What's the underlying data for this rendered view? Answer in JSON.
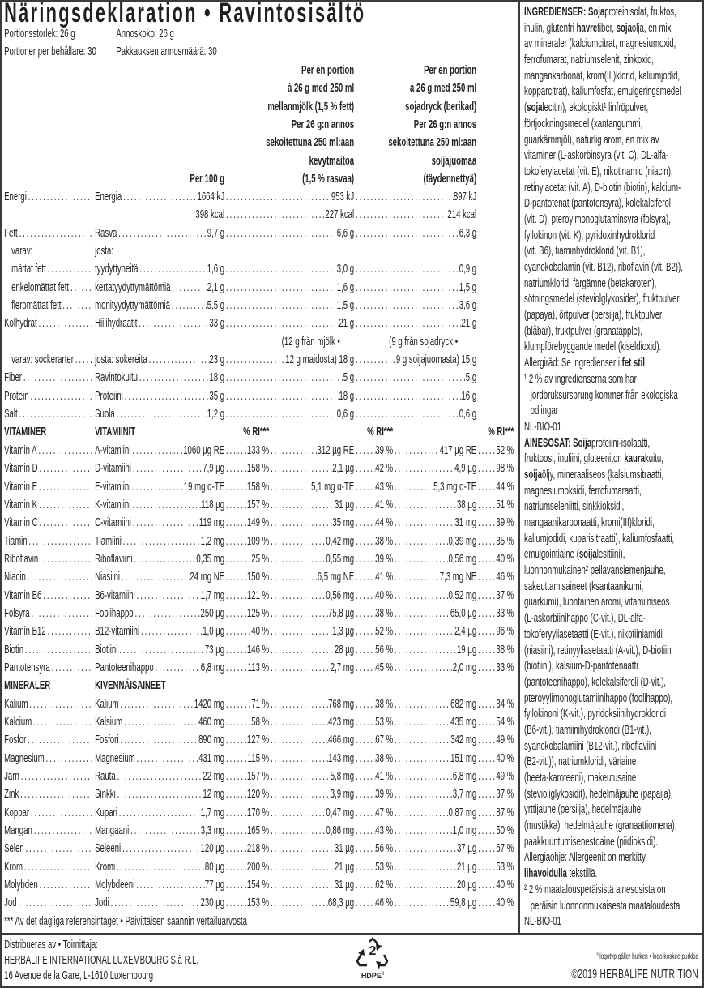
{
  "title": "Näringsdeklaration • Ravintosisältö",
  "serving": {
    "size_sv": "Portionsstorlek: 26 g",
    "size_fi": "Annoskoko: 26 g",
    "count_sv": "Portioner per behållare: 30",
    "count_fi": "Pakkauksen annosmäärä: 30"
  },
  "columns": {
    "per100": "Per 100 g",
    "milk": [
      "Per en portion",
      "à 26 g med 250 ml",
      "mellanmjölk (1,5 % fett)",
      "Per 26 g:n annos",
      "sekoitettuna 250 ml:aan",
      "kevytmaitoa",
      "(1,5 % rasvaa)"
    ],
    "soy": [
      "Per en portion",
      "à 26 g med 250 ml",
      "sojadryck (berikad)",
      "Per 26 g:n annos",
      "sekoitettuna 250 ml:aan",
      "soijajuomaa",
      "(täydennettyä)"
    ]
  },
  "nutrients": [
    {
      "type": "main",
      "sv": "Energi",
      "fi": "Energia",
      "v1": "1664 kJ",
      "v2": "953 kJ",
      "v3": "897 kJ"
    },
    {
      "type": "cont",
      "v1": "398 kcal",
      "v2": "227 kcal",
      "v3": "214 kcal"
    },
    {
      "type": "main",
      "sv": "Fett",
      "fi": "Rasva",
      "v1": "9,7 g",
      "v2": "6,6 g",
      "v3": "6,3 g"
    },
    {
      "type": "label",
      "sv": "varav:",
      "fi": "josta:"
    },
    {
      "type": "main",
      "indent": true,
      "sv": "mättat fett",
      "fi": "tyydyttyneitä",
      "v1": "1,6 g",
      "v2": "3,0 g",
      "v3": "0,9 g"
    },
    {
      "type": "main",
      "indent": true,
      "sv": "enkelomättat fett",
      "fi": "kertatyydyttymättömiä",
      "v1": "2,1 g",
      "v2": "1,6 g",
      "v3": "1,5 g"
    },
    {
      "type": "main",
      "indent": true,
      "sv": "fleromättat fett",
      "fi": "monityydyttymättömiä",
      "v1": "5,5 g",
      "v2": "1,5 g",
      "v3": "3,6 g"
    },
    {
      "type": "main",
      "sv": "Kolhydrat",
      "fi": "Hiilihydraatit",
      "v1": "33 g",
      "v2": "21 g",
      "v3": "21 g"
    },
    {
      "type": "note",
      "v2": "(12 g från mjölk •",
      "v3": "(9 g från sojadryck •"
    },
    {
      "type": "main",
      "indent": true,
      "sv": "varav: sockerarter",
      "fi": "josta: sokereita",
      "v1": "23 g",
      "v2": "12 g maidosta) 18 g",
      "v3": "9 g soijajuomasta) 15 g"
    },
    {
      "type": "main",
      "sv": "Fiber",
      "fi": "Ravintokuitu",
      "v1": "18 g",
      "v2": "5 g",
      "v3": "5 g"
    },
    {
      "type": "main",
      "sv": "Protein",
      "fi": "Proteiini",
      "v1": "35 g",
      "v2": "18 g",
      "v3": "16 g"
    },
    {
      "type": "main",
      "sv": "Salt",
      "fi": "Suola",
      "v1": "1,2 g",
      "v2": "0,6 g",
      "v3": "0,6 g"
    }
  ],
  "ri_label": "% RI***",
  "vitamins": {
    "header_sv": "VITAMINER",
    "header_fi": "VITAMIINIT",
    "rows": [
      {
        "sv": "Vitamin A",
        "fi": "A-vitamiini",
        "v1": "1060 µg RE",
        "p1": "133 %",
        "v2": "312 µg RE",
        "p2": "39 %",
        "v3": "417 µg RE",
        "p3": "52 %"
      },
      {
        "sv": "Vitamin D",
        "fi": "D-vitamiini",
        "v1": "7,9 µg",
        "p1": "158 %",
        "v2": "2,1 µg",
        "p2": "42 %",
        "v3": "4,9 µg",
        "p3": "98 %"
      },
      {
        "sv": "Vitamin E",
        "fi": "E-vitamiini",
        "v1": "19 mg α-TE",
        "p1": "158 %",
        "v2": "5,1 mg α-TE",
        "p2": "43 %",
        "v3": "5,3 mg α-TE",
        "p3": "44 %"
      },
      {
        "sv": "Vitamin K",
        "fi": "K-vitamiini",
        "v1": "118 µg",
        "p1": "157 %",
        "v2": "31 µg",
        "p2": "41 %",
        "v3": "38 µg",
        "p3": "51 %"
      },
      {
        "sv": "Vitamin C",
        "fi": "C-vitamiini",
        "v1": "119 mg",
        "p1": "149 %",
        "v2": "35 mg",
        "p2": "44 %",
        "v3": "31 mg",
        "p3": "39 %"
      },
      {
        "sv": "Tiamin",
        "fi": "Tiamiini",
        "v1": "1,2 mg",
        "p1": "109 %",
        "v2": "0,42 mg",
        "p2": "38 %",
        "v3": "0,39 mg",
        "p3": "35 %"
      },
      {
        "sv": "Riboflavin",
        "fi": "Riboflaviini",
        "v1": "0,35 mg",
        "p1": "25 %",
        "v2": "0,55 mg",
        "p2": "39 %",
        "v3": "0,56 mg",
        "p3": "40 %"
      },
      {
        "sv": "Niacin",
        "fi": "Niasiini",
        "v1": "24 mg NE",
        "p1": "150 %",
        "v2": "6,5 mg NE",
        "p2": "41 %",
        "v3": "7,3 mg NE",
        "p3": "46 %"
      },
      {
        "sv": "Vitamin B6",
        "fi": "B6-vitamiini",
        "v1": "1,7 mg",
        "p1": "121 %",
        "v2": "0,56 mg",
        "p2": "40 %",
        "v3": "0,52 mg",
        "p3": "37 %"
      },
      {
        "sv": "Folsyra",
        "fi": "Foolihappo",
        "v1": "250 µg",
        "p1": "125 %",
        "v2": "75,8 µg",
        "p2": "38 %",
        "v3": "65,0 µg",
        "p3": "33 %"
      },
      {
        "sv": "Vitamin B12",
        "fi": "B12-vitamiini",
        "v1": "1,0 µg",
        "p1": "40 %",
        "v2": "1,3 µg",
        "p2": "52 %",
        "v3": "2,4 µg",
        "p3": "96 %"
      },
      {
        "sv": "Biotin",
        "fi": "Biotiini",
        "v1": "73 µg",
        "p1": "146 %",
        "v2": "28 µg",
        "p2": "56 %",
        "v3": "19 µg",
        "p3": "38 %"
      },
      {
        "sv": "Pantotensyra",
        "fi": "Pantoteenihappo",
        "v1": "6,8 mg",
        "p1": "113 %",
        "v2": "2,7 mg",
        "p2": "45 %",
        "v3": "2,0 mg",
        "p3": "33 %"
      }
    ]
  },
  "minerals": {
    "header_sv": "MINERALER",
    "header_fi": "KIVENNÄISAINEET",
    "rows": [
      {
        "sv": "Kalium",
        "fi": "Kalium",
        "v1": "1420 mg",
        "p1": "71 %",
        "v2": "768 mg",
        "p2": "38 %",
        "v3": "682 mg",
        "p3": "34 %"
      },
      {
        "sv": "Kalcium",
        "fi": "Kalsium",
        "v1": "460 mg",
        "p1": "58 %",
        "v2": "423 mg",
        "p2": "53 %",
        "v3": "435 mg",
        "p3": "54 %"
      },
      {
        "sv": "Fosfor",
        "fi": "Fosfori",
        "v1": "890 mg",
        "p1": "127 %",
        "v2": "466 mg",
        "p2": "67 %",
        "v3": "342 mg",
        "p3": "49 %"
      },
      {
        "sv": "Magnesium",
        "fi": "Magnesium",
        "v1": "431 mg",
        "p1": "115 %",
        "v2": "143 mg",
        "p2": "38 %",
        "v3": "151 mg",
        "p3": "40 %"
      },
      {
        "sv": "Järn",
        "fi": "Rauta",
        "v1": "22 mg",
        "p1": "157 %",
        "v2": "5,8 mg",
        "p2": "41 %",
        "v3": "6,8 mg",
        "p3": "49 %"
      },
      {
        "sv": "Zink",
        "fi": "Sinkki",
        "v1": "12 mg",
        "p1": "120 %",
        "v2": "3,9 mg",
        "p2": "39 %",
        "v3": "3,7 mg",
        "p3": "37 %"
      },
      {
        "sv": "Koppar",
        "fi": "Kupari",
        "v1": "1,7 mg",
        "p1": "170 %",
        "v2": "0,47 mg",
        "p2": "47 %",
        "v3": "0,87 mg",
        "p3": "87 %"
      },
      {
        "sv": "Mangan",
        "fi": "Mangaani",
        "v1": "3,3 mg",
        "p1": "165 %",
        "v2": "0,86 mg",
        "p2": "43 %",
        "v3": "1,0 mg",
        "p3": "50 %"
      },
      {
        "sv": "Selen",
        "fi": "Seleeni",
        "v1": "120 µg",
        "p1": "218 %",
        "v2": "31 µg",
        "p2": "56 %",
        "v3": "37 µg",
        "p3": "67 %"
      },
      {
        "sv": "Krom",
        "fi": "Kromi",
        "v1": "80 µg",
        "p1": "200 %",
        "v2": "21 µg",
        "p2": "53 %",
        "v3": "21 µg",
        "p3": "53 %"
      },
      {
        "sv": "Molybden",
        "fi": "Molybdeeni",
        "v1": "77 µg",
        "p1": "154 %",
        "v2": "31 µg",
        "p2": "62 %",
        "v3": "20 µg",
        "p3": "40 %"
      },
      {
        "sv": "Jod",
        "fi": "Jodi",
        "v1": "230 µg",
        "p1": "153 %",
        "v2": "68,3 µg",
        "p2": "46 %",
        "v3": "59,8 µg",
        "p3": "40 %"
      }
    ]
  },
  "footnote_ri": "*** Av det dagliga referensintaget • Päivittäisen saannin vertailuarvosta",
  "ingredients": {
    "lines": [
      [
        {
          "b": "INGREDIENSER: Soja"
        },
        "proteinisolat, fruktos,"
      ],
      [
        "inulin, glutenfri ",
        {
          "b": "havre"
        },
        "fiber, ",
        {
          "b": "soja"
        },
        "olja, en mix"
      ],
      "av mineraler (kalciumcitrat, magnesiumoxid,",
      "ferrofumarat, natriumselenit, zinkoxid,",
      "mangankarbonat, krom(III)klorid, kaliumjodid,",
      "kopparcitrat), kaliumfosfat, emulgeringsmedel",
      [
        "(",
        {
          "b": "soja"
        },
        "lecitin), ekologiskt¹ linfröpulver,"
      ],
      "förtjockningsmedel (xantangummi,",
      "guarkärnmjöl), naturlig arom, en mix av",
      "vitaminer (L-askorbinsyra (vit. C), DL-alfa-",
      "tokoferylacetat (vit. E), nikotinamid (niacin),",
      "retinylacetat (vit. A), D-biotin (biotin), kalcium-",
      "D-pantotenat (pantotensyra), kolekalciferol",
      "(vit. D), pteroylmonoglutaminsyra (folsyra),",
      "fyllokinon (vit. K), pyridoxinhydroklorid",
      "(vit. B6), tiaminhydroklorid (vit. B1),",
      "cyanokobalamin (vit. B12), riboflavin (vit. B2)),",
      "natriumklorid, färgämne (betakaroten),",
      "sötningsmedel (steviolglykosider), fruktpulver",
      "(papaya), örtpulver (persilja), fruktpulver",
      "(blåbär), fruktpulver (granatäpple),",
      "klumpförebyggande medel (kiseldioxid).",
      [
        "Allergiråd: Se ingredienser i ",
        {
          "b": "fet stil"
        },
        "."
      ],
      "¹ 2 % av ingredienserna som har",
      "jordbruksursprung kommer från ekologiska",
      "odlingar",
      "NL-BIO-01",
      [
        {
          "b": "AINESOSAT: Soija"
        },
        "proteiini-isolaatti,"
      ],
      [
        "fruktoosi, inuliini, gluteeniton ",
        {
          "b": "kaura"
        },
        "kuitu,"
      ],
      [
        {
          "b": "soija"
        },
        "öljy, mineraaliseos (kalsiumsitraatti,"
      ],
      "magnesiumoksidi, ferrofumaraatti,",
      "natriumseleniitti, sinkkioksidi,",
      "mangaanikarbonaatti, kromi(III)kloridi,",
      "kaliumjodidi, kuparisitraatti), kaliumfosfaatti,",
      [
        "emulgointiaine (",
        {
          "b": "soija"
        },
        "lesitiini),"
      ],
      "luonnonmukainen² pellavansiemenjauhe,",
      "sakeuttamisaineet (ksantaanikumi,",
      "guarkumi), luontainen aromi, vitamiiniseos",
      "(L-askorbiinihappo (C-vit.), DL-alfa-",
      "tokoferyyliasetaatti (E-vit.), nikotiiniamidi",
      "(niasiini), retinyyliasetaatti (A-vit.), D-biotiini",
      "(biotiini), kalsium-D-pantotenaatti",
      "(pantoteenihappo), kolekalsiferoli (D-vit.),",
      "pteroyylimonoglutamiinihappo (foolihappo),",
      "fyllokinoni (K-vit.), pyridoksiinihydrokloridi",
      "(B6-vit.), tiamiinihydrokloridi (B1-vit.),",
      "syanokobalamiini (B12-vit.), riboflaviini",
      "(B2-vit.)), natriumkloridi, väriaine",
      "(beeta-karoteeni), makeutusaine",
      "(stevioliglykosidit), hedelmäjauhe (papaija),",
      "yrttijauhe (persilja), hedelmäjauhe",
      "(mustikka), hedelmäjauhe (granaattiomena),",
      "paakkuuntumisenestoaine (piidioksidi).",
      "Allergiaohje: Allergeenit on merkitty",
      [
        {
          "b": "lihavoidulla"
        },
        " tekstillä."
      ],
      "² 2 % maatalousperäisistä ainesosista on",
      "peräisin luonnonmukaisesta maataloudesta",
      "NL-BIO-01"
    ]
  },
  "distributor": {
    "heading": "Distribueras av • Toimittaja:",
    "company": "HERBALIFE INTERNATIONAL LUXEMBOURG S.à R.L.",
    "address": "16 Avenue de la Gare, L-1610 Luxembourg"
  },
  "recycling": {
    "icon": "recycle-icon",
    "number": "2",
    "material": "HDPE",
    "footnote_ref": "3"
  },
  "logo_note": "³ logotyp gäller burken • logo koskee purkkia",
  "copyright": "©2019 HERBALIFE NUTRITION"
}
